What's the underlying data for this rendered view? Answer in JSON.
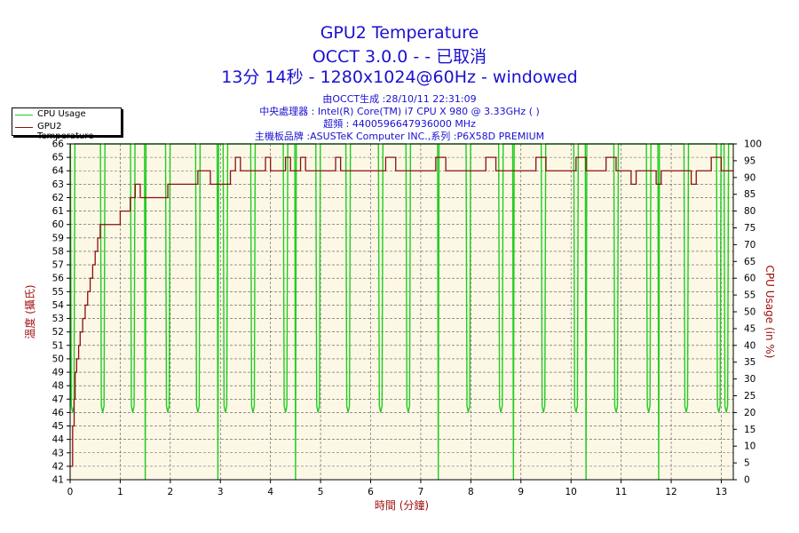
{
  "header": {
    "title": "GPU2 Temperature",
    "subtitle": "OCCT 3.0.0 -  - 已取消",
    "run_info": "13分 14秒 - 1280x1024@60Hz - windowed",
    "generated": "由OCCT生成 :28/10/11 22:31:09",
    "cpu": "中央處理器 : Intel(R) Core(TM) i7 CPU X 980 @ 3.33GHz (        )",
    "clock": "超頻 : 4400596647936000 MHz",
    "motherboard": "主機板品牌 :ASUSTeK Computer INC.,系列 :P6X58D PREMIUM"
  },
  "legend": {
    "items": [
      {
        "label": "CPU Usage",
        "color": "#22cc22"
      },
      {
        "label": "GPU2 Temperature",
        "color": "#8b1010"
      }
    ]
  },
  "colors": {
    "plot_bg": "#fdf8e6",
    "grid": "#555555",
    "cpu_line": "#22cc22",
    "temp_line": "#8b1010",
    "axis_label_left": "#a01010",
    "axis_label_right": "#a01010",
    "axis_label_bottom": "#a01010"
  },
  "chart_data": {
    "type": "line",
    "xlabel": "時間 (分鐘)",
    "ylabel": "溫度 (攝氏)",
    "y2label": "CPU Usage (in %)",
    "xlim": [
      0,
      13.24
    ],
    "ylim": [
      41,
      66
    ],
    "y2lim": [
      0,
      100
    ],
    "xticks": [
      0,
      1,
      2,
      3,
      4,
      5,
      6,
      7,
      8,
      9,
      10,
      11,
      12,
      13
    ],
    "yticks": [
      41,
      42,
      43,
      44,
      45,
      46,
      47,
      48,
      49,
      50,
      51,
      52,
      53,
      54,
      55,
      56,
      57,
      58,
      59,
      60,
      61,
      62,
      63,
      64,
      65,
      66
    ],
    "y2ticks": [
      0,
      5,
      10,
      15,
      20,
      25,
      30,
      35,
      40,
      45,
      50,
      55,
      60,
      65,
      70,
      75,
      80,
      85,
      90,
      95,
      100
    ],
    "grid": true,
    "legend_position": "top-left",
    "series": [
      {
        "name": "GPU2 Temperature",
        "axis": "left",
        "x": [
          0.0,
          0.03,
          0.05,
          0.08,
          0.1,
          0.13,
          0.17,
          0.2,
          0.25,
          0.3,
          0.35,
          0.4,
          0.45,
          0.5,
          0.55,
          0.6,
          0.65,
          0.7,
          0.75,
          0.8,
          0.9,
          1.0,
          1.1,
          1.2,
          1.3,
          1.4,
          1.45,
          1.5,
          1.6,
          1.8,
          1.95,
          2.0,
          2.3,
          2.45,
          2.55,
          2.6,
          2.8,
          3.0,
          3.2,
          3.3,
          3.4,
          3.6,
          3.8,
          3.9,
          4.0,
          4.2,
          4.3,
          4.4,
          4.5,
          4.6,
          4.7,
          4.8,
          5.0,
          5.2,
          5.3,
          5.4,
          5.6,
          6.0,
          6.2,
          6.3,
          6.5,
          6.8,
          7.0,
          7.2,
          7.3,
          7.5,
          7.8,
          8.2,
          8.3,
          8.5,
          8.8,
          9.0,
          9.2,
          9.3,
          9.5,
          10.0,
          10.1,
          10.3,
          10.6,
          10.7,
          10.9,
          11.0,
          11.2,
          11.3,
          11.6,
          11.7,
          11.8,
          12.2,
          12.3,
          12.4,
          12.5,
          12.7,
          12.8,
          13.0,
          13.2
        ],
        "values": [
          42,
          42,
          45,
          47,
          49,
          50,
          51,
          52,
          53,
          54,
          55,
          56,
          57,
          58,
          59,
          60,
          60,
          60,
          60,
          60,
          60,
          61,
          61,
          62,
          63,
          62,
          62,
          62,
          62,
          62,
          63,
          63,
          63,
          63,
          64,
          64,
          63,
          63,
          64,
          65,
          64,
          64,
          64,
          65,
          64,
          64,
          65,
          64,
          64,
          65,
          64,
          64,
          64,
          64,
          65,
          64,
          64,
          64,
          64,
          65,
          64,
          64,
          64,
          64,
          65,
          64,
          64,
          64,
          65,
          64,
          64,
          64,
          64,
          65,
          64,
          64,
          65,
          64,
          64,
          65,
          64,
          64,
          63,
          64,
          64,
          63,
          64,
          64,
          64,
          63,
          64,
          64,
          65,
          64,
          64
        ]
      },
      {
        "name": "CPU Usage",
        "axis": "right",
        "dips": [
          {
            "x": 0.05,
            "min": 20
          },
          {
            "x": 0.65,
            "min": 20
          },
          {
            "x": 1.25,
            "min": 20
          },
          {
            "x": 1.5,
            "min": 0
          },
          {
            "x": 1.95,
            "min": 20
          },
          {
            "x": 2.55,
            "min": 20
          },
          {
            "x": 2.95,
            "min": 0
          },
          {
            "x": 3.1,
            "min": 20
          },
          {
            "x": 3.65,
            "min": 20
          },
          {
            "x": 4.3,
            "min": 20
          },
          {
            "x": 4.5,
            "min": 0
          },
          {
            "x": 4.95,
            "min": 20
          },
          {
            "x": 5.55,
            "min": 20
          },
          {
            "x": 6.2,
            "min": 20
          },
          {
            "x": 6.75,
            "min": 20
          },
          {
            "x": 7.35,
            "min": 0
          },
          {
            "x": 7.95,
            "min": 20
          },
          {
            "x": 8.6,
            "min": 20
          },
          {
            "x": 8.85,
            "min": 0
          },
          {
            "x": 9.45,
            "min": 20
          },
          {
            "x": 10.1,
            "min": 20
          },
          {
            "x": 10.3,
            "min": 0
          },
          {
            "x": 10.9,
            "min": 20
          },
          {
            "x": 11.55,
            "min": 20
          },
          {
            "x": 11.75,
            "min": 0
          },
          {
            "x": 12.3,
            "min": 20
          },
          {
            "x": 12.95,
            "min": 20
          },
          {
            "x": 13.1,
            "min": 20
          }
        ],
        "baseline": 100
      }
    ]
  }
}
